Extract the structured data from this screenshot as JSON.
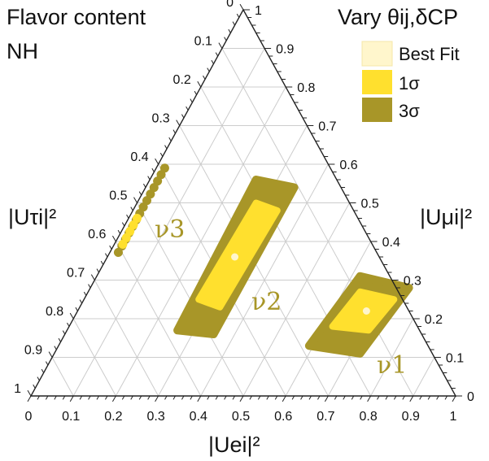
{
  "chart_data": {
    "type": "ternary",
    "title": "Flavor content",
    "subtitle": "NH",
    "axes": {
      "bottom_label": "|Uei|²",
      "right_label": "|Uμi|²",
      "left_label": "|Uτi|²",
      "ticks": [
        "0",
        "0.1",
        "0.2",
        "0.3",
        "0.4",
        "0.5",
        "0.6",
        "0.7",
        "0.8",
        "0.9",
        "1"
      ]
    },
    "legend": {
      "title": "Vary θij,δCP",
      "entries": [
        {
          "label": "Best Fit",
          "color": "#fff6cc"
        },
        {
          "label": "1σ",
          "color": "#ffe02e"
        },
        {
          "label": "3σ",
          "color": "#a89628"
        }
      ],
      "placement": "top-right"
    },
    "states": [
      {
        "label": "ν1",
        "best_fit": {
          "e": 0.68,
          "mu": 0.22,
          "tau": 0.1
        },
        "one_sigma": [
          {
            "e": 0.64,
            "mu": 0.27,
            "tau": 0.09
          },
          {
            "e": 0.73,
            "mu": 0.25,
            "tau": 0.02
          },
          {
            "e": 0.71,
            "mu": 0.17,
            "tau": 0.12
          },
          {
            "e": 0.62,
            "mu": 0.18,
            "tau": 0.2
          }
        ],
        "three_sigma": [
          {
            "e": 0.62,
            "mu": 0.31,
            "tau": 0.07
          },
          {
            "e": 0.75,
            "mu": 0.28,
            "tau": -0.03
          },
          {
            "e": 0.72,
            "mu": 0.11,
            "tau": 0.17
          },
          {
            "e": 0.59,
            "mu": 0.13,
            "tau": 0.28
          }
        ]
      },
      {
        "label": "ν2",
        "best_fit": {
          "e": 0.3,
          "mu": 0.36,
          "tau": 0.34
        },
        "one_sigma": [
          {
            "e": 0.28,
            "mu": 0.5,
            "tau": 0.22
          },
          {
            "e": 0.34,
            "mu": 0.48,
            "tau": 0.18
          },
          {
            "e": 0.33,
            "mu": 0.23,
            "tau": 0.44
          },
          {
            "e": 0.27,
            "mu": 0.25,
            "tau": 0.48
          }
        ],
        "three_sigma": [
          {
            "e": 0.25,
            "mu": 0.56,
            "tau": 0.19
          },
          {
            "e": 0.35,
            "mu": 0.54,
            "tau": 0.11
          },
          {
            "e": 0.35,
            "mu": 0.16,
            "tau": 0.49
          },
          {
            "e": 0.26,
            "mu": 0.17,
            "tau": 0.57
          }
        ]
      },
      {
        "label": "ν3",
        "three_sigma_band": [
          {
            "e": 0.02,
            "mu": 0.59,
            "tau": 0.39
          },
          {
            "e": 0.02,
            "mu": 0.36,
            "tau": 0.62
          }
        ],
        "one_sigma_band": [
          {
            "e": 0.02,
            "mu": 0.46,
            "tau": 0.52
          },
          {
            "e": 0.02,
            "mu": 0.39,
            "tau": 0.59
          }
        ]
      }
    ],
    "grid": true
  }
}
